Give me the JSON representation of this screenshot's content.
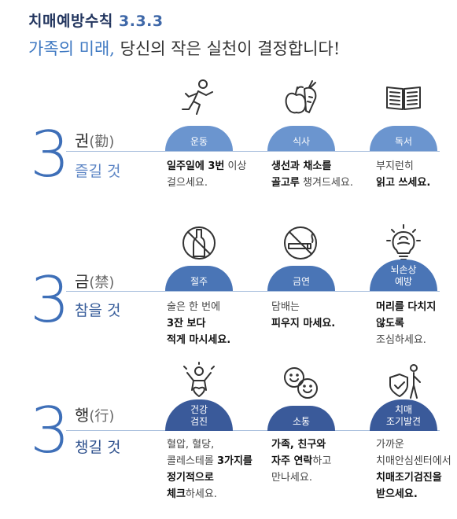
{
  "header": {
    "title": "치매예방수칙",
    "title_num": "3.3.3",
    "subtitle_hl": "가족의 미래,",
    "subtitle_rest": "당신의 작은 실천이 결정합니다!"
  },
  "sections": [
    {
      "number": "3",
      "category": "권",
      "category_hanja": "(勸)",
      "action": "즐길 것",
      "items": [
        {
          "icon": "running-person-icon",
          "label": "운동",
          "desc_bold1": "일주일에 3번",
          "desc_rest1": " 이상",
          "desc_line2": "걸으세요.",
          "desc_line3": ""
        },
        {
          "icon": "fruit-vegetable-icon",
          "label": "식사",
          "desc_bold1": "생선과 채소를",
          "desc_rest1": "",
          "desc_line2": "골고루 챙겨드세요.",
          "desc_line3": ""
        },
        {
          "icon": "book-icon",
          "label": "독서",
          "desc_bold1": "",
          "desc_rest1": "부지런히",
          "desc_line2": "읽고 쓰세요.",
          "desc_line3": ""
        }
      ]
    },
    {
      "number": "3",
      "category": "금",
      "category_hanja": "(禁)",
      "action": "참을 것",
      "items": [
        {
          "icon": "no-alcohol-icon",
          "label": "절주",
          "desc_bold1": "",
          "desc_rest1": "술은 한 번에",
          "desc_line2": "3잔 보다",
          "desc_line3": "적게 마시세요."
        },
        {
          "icon": "no-smoking-icon",
          "label": "금연",
          "desc_bold1": "",
          "desc_rest1": "담배는",
          "desc_line2": "피우지 마세요.",
          "desc_line3": ""
        },
        {
          "icon": "brain-bulb-icon",
          "label": "뇌손상\n예방",
          "desc_bold1": "머리를 다치지",
          "desc_rest1": "",
          "desc_line2": "않도록",
          "desc_line3": "조심하세요."
        }
      ]
    },
    {
      "number": "3",
      "category": "행",
      "category_hanja": "(行)",
      "action": "챙길 것",
      "items": [
        {
          "icon": "heart-person-icon",
          "label": "건강\n검진",
          "desc_bold1": "",
          "desc_rest1": "혈압, 혈당,",
          "desc_line2": "콜레스테롤 3가지를",
          "desc_line3": "정기적으로",
          "desc_line4": "체크하세요."
        },
        {
          "icon": "smiley-faces-icon",
          "label": "소통",
          "desc_bold1": "가족, 친구와",
          "desc_rest1": "",
          "desc_line2": "자주 연락하고",
          "desc_line3": "만나세요.",
          "desc_line4": ""
        },
        {
          "icon": "shield-person-icon",
          "label": "치매\n조기발견",
          "desc_bold1": "",
          "desc_rest1": "가까운",
          "desc_line2": "치매안심센터에서",
          "desc_line3": "치매조기검진을",
          "desc_line4": "받으세요."
        }
      ]
    }
  ]
}
